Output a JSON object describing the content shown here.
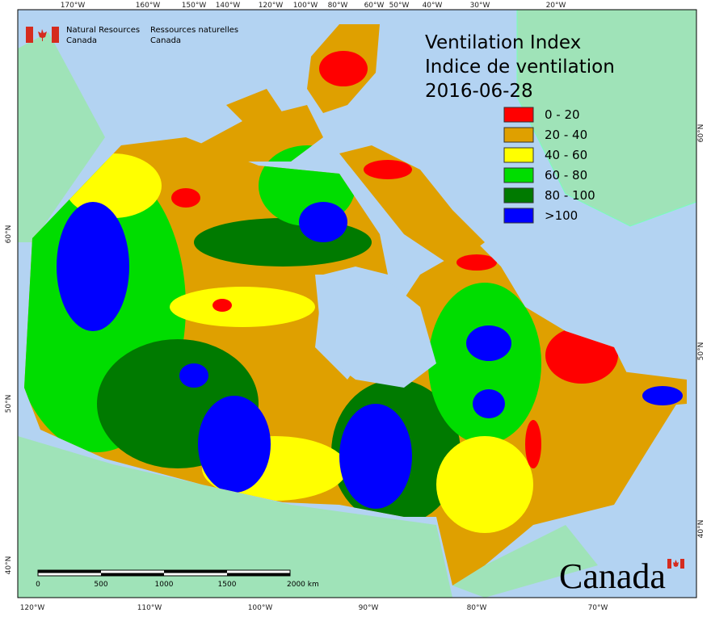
{
  "header": {
    "title": "Ventilation Index",
    "subtitle": "Indice de ventilation",
    "date": "2016-06-28"
  },
  "agency": {
    "en_line1": "Natural Resources",
    "en_line2": "Canada",
    "fr_line1": "Ressources naturelles",
    "fr_line2": "Canada"
  },
  "legend": [
    {
      "label": "0 - 20",
      "color": "#ff0000"
    },
    {
      "label": "20 - 40",
      "color": "#dfa000"
    },
    {
      "label": "40 - 60",
      "color": "#ffff00"
    },
    {
      "label": "60 - 80",
      "color": "#00dd00"
    },
    {
      "label": "80 - 100",
      "color": "#007a00"
    },
    {
      "label": ">100",
      "color": "#0000ff"
    }
  ],
  "graticule": {
    "top": [
      "170°W",
      "160°W",
      "150°W",
      "140°W",
      "120°W",
      "100°W",
      "80°W",
      "60°W",
      "50°W",
      "40°W",
      "30°W",
      "20°W"
    ],
    "bottom": [
      "120°W",
      "110°W",
      "100°W",
      "90°W",
      "80°W",
      "70°W"
    ],
    "left": [
      "60°N",
      "50°N",
      "40°N"
    ],
    "right": [
      "60°N",
      "50°N",
      "40°N"
    ]
  },
  "scale_bar": {
    "labels": [
      "0",
      "500",
      "1000",
      "1500",
      "2000 km"
    ]
  },
  "wordmark": "Canada"
}
